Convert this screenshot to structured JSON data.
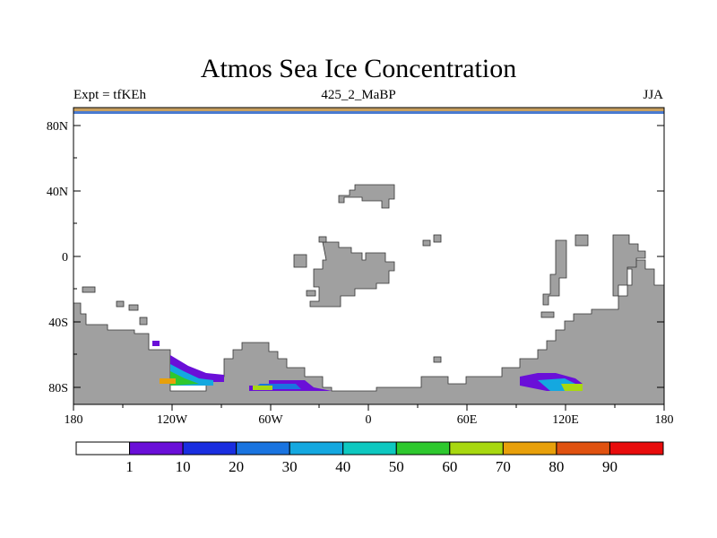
{
  "title": "Atmos Sea Ice Concentration",
  "subtitle_left": "Expt = tfKEh",
  "subtitle_center": "425_2_MaBP",
  "subtitle_right": "JJA",
  "map": {
    "type": "map",
    "lon_range": [
      -180,
      180
    ],
    "lat_range": [
      -90,
      90
    ],
    "x_ticks": [
      "180",
      "120W",
      "60W",
      "0",
      "60E",
      "120E",
      "180"
    ],
    "y_ticks": [
      "80N",
      "40N",
      "0",
      "40S",
      "80S"
    ],
    "land_color": "#a0a0a0",
    "ocean_color": "#ffffff"
  },
  "colorbar": {
    "labels": [
      "1",
      "10",
      "20",
      "30",
      "40",
      "50",
      "60",
      "70",
      "80",
      "90"
    ],
    "colors": [
      "#ffffff",
      "#6a0fd8",
      "#1a2ee0",
      "#1a74e0",
      "#14a8e0",
      "#0ec8c0",
      "#2ec82e",
      "#a8d810",
      "#e8a00a",
      "#e05210",
      "#e80c0c"
    ]
  }
}
